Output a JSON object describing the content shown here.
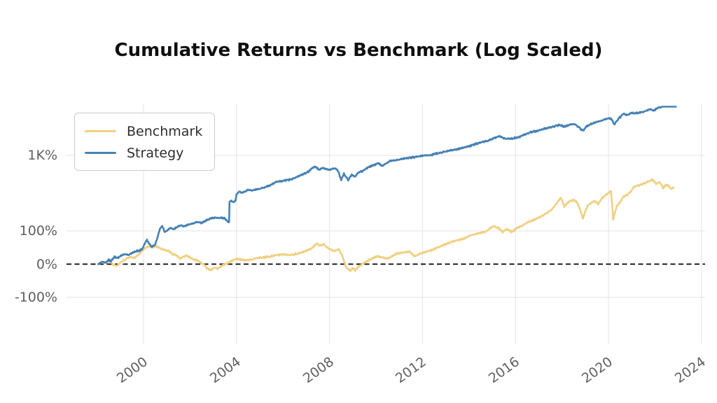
{
  "title": "Cumulative Returns vs Benchmark (Log Scaled)",
  "colors": {
    "benchmark": "#F0D081",
    "strategy": "#4682B4",
    "grid": "#E3E3E8",
    "zero_line": "#000000",
    "tick_label": "#5F5F5F",
    "title_text": "#0F0F0F",
    "legend_border": "#CCCCCC",
    "background": "#FFFFFF"
  },
  "legend": {
    "items": [
      {
        "label": "Benchmark",
        "series": "benchmark"
      },
      {
        "label": "Strategy",
        "series": "strategy"
      }
    ]
  },
  "axes": {
    "x_ticks": [
      {
        "label": "2000",
        "year": 2000
      },
      {
        "label": "2004",
        "year": 2004
      },
      {
        "label": "2008",
        "year": 2008
      },
      {
        "label": "2012",
        "year": 2012
      },
      {
        "label": "2016",
        "year": 2016
      },
      {
        "label": "2020",
        "year": 2020
      },
      {
        "label": "2024",
        "year": 2024
      }
    ],
    "y_ticks": [
      {
        "label": "1K%",
        "pct": 1000,
        "grid": true
      },
      {
        "label": "100%",
        "pct": 100,
        "grid": true
      },
      {
        "label": "0%",
        "pct": 0,
        "grid": false
      },
      {
        "label": "-100%",
        "pct": -100,
        "grid": true
      }
    ],
    "zero_line": {
      "pct": 0,
      "style": "dashed"
    }
  },
  "chart_data": {
    "type": "line",
    "title": "Cumulative Returns vs Benchmark (Log Scaled)",
    "x_unit": "year",
    "y_unit": "cumulative return %",
    "y_scale": "symlog (linear within ±100%, log10 beyond)",
    "x_range": [
      1996.9,
      2024.1
    ],
    "legend_position": "upper left",
    "grid": true,
    "series": [
      {
        "name": "Benchmark",
        "color": "#F0D081",
        "points": [
          [
            1998.05,
            0
          ],
          [
            1998.15,
            4
          ],
          [
            1998.25,
            7
          ],
          [
            1998.35,
            3
          ],
          [
            1998.5,
            9
          ],
          [
            1998.6,
            6
          ],
          [
            1998.7,
            -3
          ],
          [
            1998.85,
            -5
          ],
          [
            1999.0,
            4
          ],
          [
            1999.15,
            12
          ],
          [
            1999.3,
            18
          ],
          [
            1999.45,
            22
          ],
          [
            1999.6,
            19
          ],
          [
            1999.75,
            26
          ],
          [
            1999.9,
            36
          ],
          [
            2000.05,
            47
          ],
          [
            2000.2,
            54
          ],
          [
            2000.35,
            49
          ],
          [
            2000.5,
            54
          ],
          [
            2000.65,
            50
          ],
          [
            2000.8,
            45
          ],
          [
            2000.95,
            42
          ],
          [
            2001.1,
            38
          ],
          [
            2001.25,
            30
          ],
          [
            2001.4,
            28
          ],
          [
            2001.55,
            17
          ],
          [
            2001.7,
            22
          ],
          [
            2001.85,
            26
          ],
          [
            2002.0,
            20
          ],
          [
            2002.15,
            14
          ],
          [
            2002.3,
            12
          ],
          [
            2002.45,
            5
          ],
          [
            2002.6,
            -2
          ],
          [
            2002.75,
            -14
          ],
          [
            2002.9,
            -18
          ],
          [
            2003.05,
            -10
          ],
          [
            2003.2,
            -14
          ],
          [
            2003.35,
            -6
          ],
          [
            2003.5,
            0
          ],
          [
            2003.65,
            5
          ],
          [
            2003.8,
            10
          ],
          [
            2004.0,
            16
          ],
          [
            2004.2,
            14
          ],
          [
            2004.4,
            12
          ],
          [
            2004.6,
            13
          ],
          [
            2004.8,
            17
          ],
          [
            2005.0,
            19
          ],
          [
            2005.25,
            21
          ],
          [
            2005.5,
            24
          ],
          [
            2005.75,
            27
          ],
          [
            2006.0,
            30
          ],
          [
            2006.2,
            28
          ],
          [
            2006.45,
            29
          ],
          [
            2006.7,
            33
          ],
          [
            2006.95,
            39
          ],
          [
            2007.2,
            46
          ],
          [
            2007.45,
            62
          ],
          [
            2007.6,
            55
          ],
          [
            2007.75,
            60
          ],
          [
            2007.9,
            50
          ],
          [
            2008.05,
            44
          ],
          [
            2008.2,
            38
          ],
          [
            2008.4,
            45
          ],
          [
            2008.55,
            25
          ],
          [
            2008.7,
            -8
          ],
          [
            2008.9,
            -21
          ],
          [
            2009.0,
            -12
          ],
          [
            2009.1,
            -19
          ],
          [
            2009.25,
            -8
          ],
          [
            2009.45,
            2
          ],
          [
            2009.65,
            10
          ],
          [
            2009.85,
            17
          ],
          [
            2010.05,
            23
          ],
          [
            2010.25,
            20
          ],
          [
            2010.5,
            16
          ],
          [
            2010.7,
            24
          ],
          [
            2010.9,
            33
          ],
          [
            2011.1,
            34
          ],
          [
            2011.3,
            36
          ],
          [
            2011.45,
            38
          ],
          [
            2011.65,
            23
          ],
          [
            2011.8,
            27
          ],
          [
            2011.95,
            32
          ],
          [
            2012.15,
            37
          ],
          [
            2012.4,
            42
          ],
          [
            2012.65,
            50
          ],
          [
            2012.9,
            57
          ],
          [
            2013.15,
            64
          ],
          [
            2013.4,
            70
          ],
          [
            2013.7,
            75
          ],
          [
            2014.0,
            85
          ],
          [
            2014.35,
            92
          ],
          [
            2014.7,
            97
          ],
          [
            2014.9,
            108
          ],
          [
            2015.05,
            116
          ],
          [
            2015.25,
            110
          ],
          [
            2015.45,
            96
          ],
          [
            2015.6,
            105
          ],
          [
            2015.85,
            97
          ],
          [
            2016.05,
            108
          ],
          [
            2016.3,
            118
          ],
          [
            2016.55,
            130
          ],
          [
            2016.8,
            140
          ],
          [
            2017.05,
            152
          ],
          [
            2017.3,
            168
          ],
          [
            2017.55,
            190
          ],
          [
            2017.75,
            225
          ],
          [
            2017.95,
            275
          ],
          [
            2018.1,
            210
          ],
          [
            2018.3,
            245
          ],
          [
            2018.5,
            258
          ],
          [
            2018.65,
            240
          ],
          [
            2018.9,
            147
          ],
          [
            2019.1,
            215
          ],
          [
            2019.25,
            235
          ],
          [
            2019.4,
            250
          ],
          [
            2019.55,
            225
          ],
          [
            2019.8,
            290
          ],
          [
            2020.0,
            320
          ],
          [
            2020.1,
            340
          ],
          [
            2020.2,
            138
          ],
          [
            2020.35,
            210
          ],
          [
            2020.5,
            240
          ],
          [
            2020.65,
            285
          ],
          [
            2020.8,
            300
          ],
          [
            2020.95,
            330
          ],
          [
            2021.1,
            384
          ],
          [
            2021.3,
            400
          ],
          [
            2021.5,
            420
          ],
          [
            2021.7,
            445
          ],
          [
            2021.9,
            475
          ],
          [
            2022.05,
            420
          ],
          [
            2022.2,
            445
          ],
          [
            2022.35,
            370
          ],
          [
            2022.5,
            410
          ],
          [
            2022.6,
            390
          ],
          [
            2022.7,
            355
          ],
          [
            2022.8,
            380
          ]
        ]
      },
      {
        "name": "Strategy",
        "color": "#4682B4",
        "points": [
          [
            1998.05,
            0
          ],
          [
            1998.15,
            5
          ],
          [
            1998.25,
            8
          ],
          [
            1998.35,
            4
          ],
          [
            1998.5,
            12
          ],
          [
            1998.6,
            10
          ],
          [
            1998.75,
            22
          ],
          [
            1998.9,
            18
          ],
          [
            1999.05,
            26
          ],
          [
            1999.2,
            30
          ],
          [
            1999.35,
            27
          ],
          [
            1999.5,
            34
          ],
          [
            1999.65,
            38
          ],
          [
            1999.8,
            40
          ],
          [
            1999.95,
            46
          ],
          [
            2000.05,
            62
          ],
          [
            2000.15,
            72
          ],
          [
            2000.25,
            60
          ],
          [
            2000.35,
            52
          ],
          [
            2000.5,
            58
          ],
          [
            2000.6,
            80
          ],
          [
            2000.7,
            105
          ],
          [
            2000.8,
            118
          ],
          [
            2000.9,
            98
          ],
          [
            2001.0,
            100
          ],
          [
            2001.15,
            110
          ],
          [
            2001.3,
            106
          ],
          [
            2001.45,
            112
          ],
          [
            2001.6,
            118
          ],
          [
            2001.75,
            115
          ],
          [
            2001.9,
            120
          ],
          [
            2002.1,
            124
          ],
          [
            2002.3,
            132
          ],
          [
            2002.5,
            128
          ],
          [
            2002.7,
            138
          ],
          [
            2002.9,
            146
          ],
          [
            2003.05,
            150
          ],
          [
            2003.2,
            148
          ],
          [
            2003.35,
            149
          ],
          [
            2003.5,
            147
          ],
          [
            2003.62,
            132
          ],
          [
            2003.68,
            132
          ],
          [
            2003.7,
            245
          ],
          [
            2003.78,
            250
          ],
          [
            2003.85,
            242
          ],
          [
            2003.95,
            250
          ],
          [
            2004.0,
            300
          ],
          [
            2004.1,
            330
          ],
          [
            2004.2,
            320
          ],
          [
            2004.35,
            330
          ],
          [
            2004.5,
            350
          ],
          [
            2004.65,
            340
          ],
          [
            2004.85,
            355
          ],
          [
            2005.0,
            360
          ],
          [
            2005.2,
            375
          ],
          [
            2005.45,
            400
          ],
          [
            2005.7,
            445
          ],
          [
            2005.9,
            450
          ],
          [
            2006.1,
            465
          ],
          [
            2006.35,
            480
          ],
          [
            2006.6,
            520
          ],
          [
            2006.85,
            560
          ],
          [
            2007.1,
            610
          ],
          [
            2007.25,
            680
          ],
          [
            2007.4,
            710
          ],
          [
            2007.55,
            640
          ],
          [
            2007.7,
            680
          ],
          [
            2007.85,
            665
          ],
          [
            2008.0,
            650
          ],
          [
            2008.2,
            680
          ],
          [
            2008.35,
            640
          ],
          [
            2008.5,
            474
          ],
          [
            2008.62,
            570
          ],
          [
            2008.8,
            465
          ],
          [
            2008.95,
            550
          ],
          [
            2009.1,
            520
          ],
          [
            2009.25,
            590
          ],
          [
            2009.4,
            610
          ],
          [
            2009.6,
            680
          ],
          [
            2009.8,
            720
          ],
          [
            2010.1,
            790
          ],
          [
            2010.25,
            720
          ],
          [
            2010.45,
            780
          ],
          [
            2010.6,
            840
          ],
          [
            2010.85,
            860
          ],
          [
            2011.1,
            900
          ],
          [
            2011.35,
            915
          ],
          [
            2011.6,
            945
          ],
          [
            2011.85,
            965
          ],
          [
            2012.1,
            990
          ],
          [
            2012.35,
            1005
          ],
          [
            2012.6,
            1055
          ],
          [
            2012.9,
            1110
          ],
          [
            2013.15,
            1160
          ],
          [
            2013.45,
            1205
          ],
          [
            2013.7,
            1240
          ],
          [
            2014.0,
            1320
          ],
          [
            2014.35,
            1430
          ],
          [
            2014.7,
            1530
          ],
          [
            2015.0,
            1640
          ],
          [
            2015.3,
            1800
          ],
          [
            2015.55,
            1650
          ],
          [
            2015.85,
            1660
          ],
          [
            2016.1,
            1740
          ],
          [
            2016.35,
            1850
          ],
          [
            2016.6,
            2010
          ],
          [
            2016.9,
            2100
          ],
          [
            2017.2,
            2230
          ],
          [
            2017.55,
            2360
          ],
          [
            2017.9,
            2520
          ],
          [
            2018.1,
            2400
          ],
          [
            2018.35,
            2540
          ],
          [
            2018.55,
            2560
          ],
          [
            2018.9,
            2100
          ],
          [
            2019.05,
            2420
          ],
          [
            2019.25,
            2620
          ],
          [
            2019.45,
            2730
          ],
          [
            2019.65,
            2850
          ],
          [
            2019.9,
            3020
          ],
          [
            2020.1,
            3120
          ],
          [
            2020.25,
            2550
          ],
          [
            2020.4,
            2950
          ],
          [
            2020.5,
            3200
          ],
          [
            2020.65,
            3560
          ],
          [
            2020.8,
            3400
          ],
          [
            2021.0,
            3650
          ],
          [
            2021.15,
            3600
          ],
          [
            2021.35,
            3700
          ],
          [
            2021.6,
            3870
          ],
          [
            2021.8,
            4060
          ],
          [
            2021.95,
            3900
          ],
          [
            2022.1,
            4200
          ],
          [
            2022.3,
            4400
          ],
          [
            2022.9,
            4400
          ]
        ]
      }
    ]
  }
}
